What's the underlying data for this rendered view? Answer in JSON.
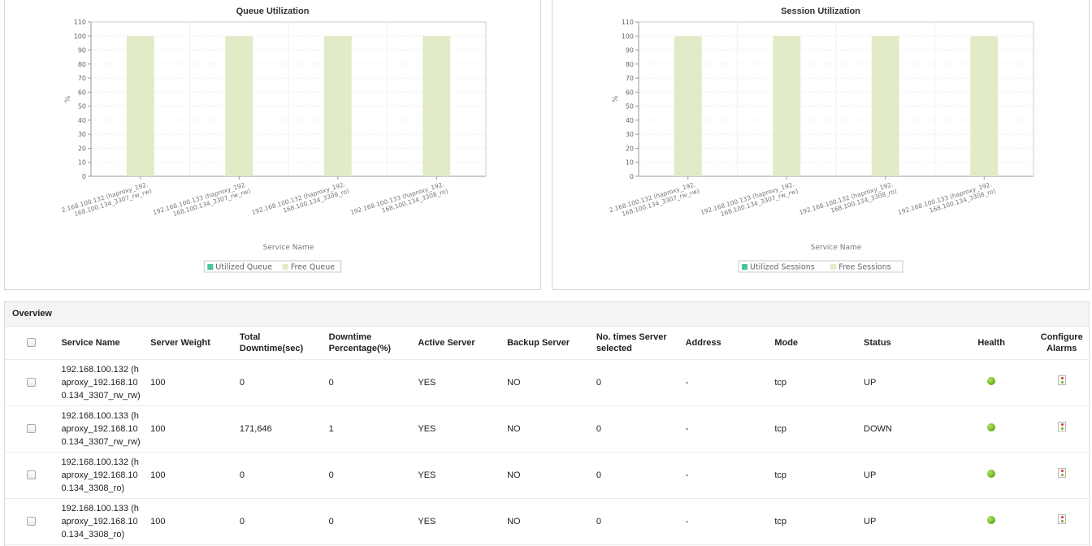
{
  "charts": [
    {
      "title": "Queue Utilization",
      "ylabel": "%",
      "xlabel": "Service Name",
      "legend": [
        "Utilized Queue",
        "Free Queue"
      ]
    },
    {
      "title": "Session Utilization",
      "ylabel": "%",
      "xlabel": "Service Name",
      "legend": [
        "Utilized Sessions",
        "Free Sessions"
      ]
    }
  ],
  "chart_data": [
    {
      "type": "bar",
      "title": "Queue Utilization",
      "xlabel": "Service Name",
      "ylabel": "%",
      "ylim": [
        0,
        110
      ],
      "yticks": [
        0,
        10,
        20,
        30,
        40,
        50,
        60,
        70,
        80,
        90,
        100,
        110
      ],
      "categories": [
        [
          "2.168.100.132 (haproxy_192.",
          "168.100.134_3307_rw_rw)"
        ],
        [
          "192.168.100.133 (haproxy_192.",
          "168.100.134_3307_rw_rw)"
        ],
        [
          "192.168.100.132 (haproxy_192.",
          "168.100.134_3308_ro)"
        ],
        [
          "192.168.100.133 (haproxy_192.",
          "168.100.134_3308_ro)"
        ]
      ],
      "series": [
        {
          "name": "Utilized Queue",
          "values": [
            0,
            0,
            0,
            0
          ]
        },
        {
          "name": "Free Queue",
          "values": [
            100,
            100,
            100,
            100
          ]
        }
      ],
      "legend_position": "bottom",
      "grid": true
    },
    {
      "type": "bar",
      "title": "Session Utilization",
      "xlabel": "Service Name",
      "ylabel": "%",
      "ylim": [
        0,
        110
      ],
      "yticks": [
        0,
        10,
        20,
        30,
        40,
        50,
        60,
        70,
        80,
        90,
        100,
        110
      ],
      "categories": [
        [
          "2.168.100.132 (haproxy_192.",
          "168.100.134_3307_rw_rw)"
        ],
        [
          "192.168.100.133 (haproxy_192.",
          "168.100.134_3307_rw_rw)"
        ],
        [
          "192.168.100.132 (haproxy_192.",
          "168.100.134_3308_ro)"
        ],
        [
          "192.168.100.133 (haproxy_192.",
          "168.100.134_3308_ro)"
        ]
      ],
      "series": [
        {
          "name": "Utilized Sessions",
          "values": [
            0,
            0,
            0,
            0
          ]
        },
        {
          "name": "Free Sessions",
          "values": [
            100,
            100,
            100,
            100
          ]
        }
      ],
      "legend_position": "bottom",
      "grid": true
    }
  ],
  "colors": {
    "utilized": "#4cc3a0",
    "free": "#e2ebc7",
    "health_ok": "#6fb423"
  },
  "overview": {
    "title": "Overview",
    "headers": {
      "service_name": "Service Name",
      "server_weight": "Server Weight",
      "total_downtime": "Total Downtime(sec)",
      "downtime_pct": "Downtime Percentage(%)",
      "active_server": "Active Server",
      "backup_server": "Backup Server",
      "times_selected": "No. times Server selected",
      "address": "Address",
      "mode": "Mode",
      "status": "Status",
      "health": "Health",
      "configure_alarms": "Configure Alarms"
    },
    "rows": [
      {
        "service_name": [
          "192.168.100.132 (h",
          "aproxy_192.168.10",
          "0.134_3307_rw_rw)"
        ],
        "server_weight": "100",
        "total_downtime": "0",
        "downtime_pct": "0",
        "active_server": "YES",
        "backup_server": "NO",
        "times_selected": "0",
        "address": "-",
        "mode": "tcp",
        "status": "UP",
        "health_icon": "health-ok-icon",
        "alarm_icon": "configure-alarm-icon"
      },
      {
        "service_name": [
          "192.168.100.133 (h",
          "aproxy_192.168.10",
          "0.134_3307_rw_rw)"
        ],
        "server_weight": "100",
        "total_downtime": "171,646",
        "downtime_pct": "1",
        "active_server": "YES",
        "backup_server": "NO",
        "times_selected": "0",
        "address": "-",
        "mode": "tcp",
        "status": "DOWN",
        "health_icon": "health-ok-icon",
        "alarm_icon": "configure-alarm-icon"
      },
      {
        "service_name": [
          "192.168.100.132 (h",
          "aproxy_192.168.10",
          "0.134_3308_ro)"
        ],
        "server_weight": "100",
        "total_downtime": "0",
        "downtime_pct": "0",
        "active_server": "YES",
        "backup_server": "NO",
        "times_selected": "0",
        "address": "-",
        "mode": "tcp",
        "status": "UP",
        "health_icon": "health-ok-icon",
        "alarm_icon": "configure-alarm-icon"
      },
      {
        "service_name": [
          "192.168.100.133 (h",
          "aproxy_192.168.10",
          "0.134_3308_ro)"
        ],
        "server_weight": "100",
        "total_downtime": "0",
        "downtime_pct": "0",
        "active_server": "YES",
        "backup_server": "NO",
        "times_selected": "0",
        "address": "-",
        "mode": "tcp",
        "status": "UP",
        "health_icon": "health-ok-icon",
        "alarm_icon": "configure-alarm-icon"
      }
    ]
  }
}
